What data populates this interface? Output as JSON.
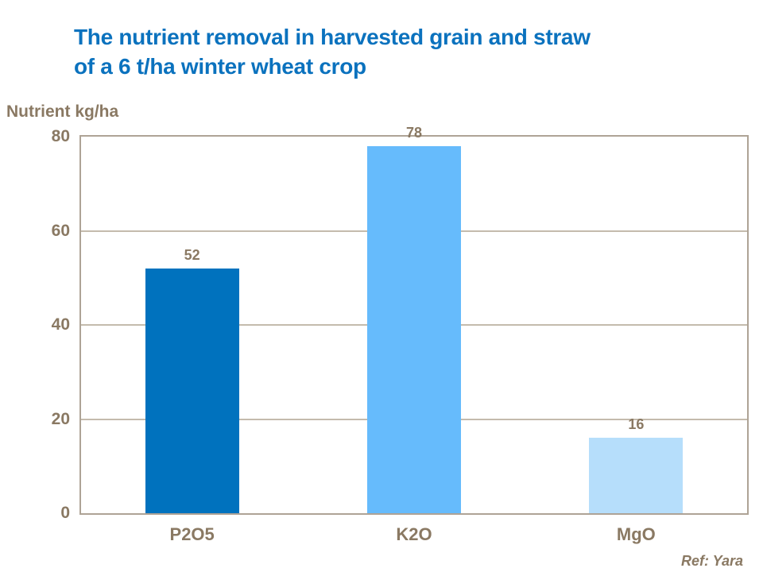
{
  "title": {
    "line1": "The nutrient removal in harvested grain and straw",
    "line2": "of a 6 t/ha winter wheat crop"
  },
  "axis_unit_label": "Nutrient kg/ha",
  "ref_text": "Ref: Yara",
  "colors": {
    "title_text": "#0B72BE",
    "chart_text": "#8A7963",
    "plot_border": "#AEA396",
    "gridline": "#C4BBAD",
    "background": "#FFFFFF"
  },
  "chart_data": {
    "type": "bar",
    "categories": [
      "P2O5",
      "K2O",
      "MgO"
    ],
    "values": [
      52,
      78,
      16
    ],
    "bar_colors": [
      "#0072BE",
      "#66BBFC",
      "#B6DEFB"
    ],
    "data_labels": [
      "52",
      "78",
      "16"
    ],
    "title": "The nutrient removal in harvested grain and straw of a 6 t/ha winter wheat crop",
    "xlabel": "",
    "ylabel": "Nutrient kg/ha",
    "ylim": [
      0,
      80
    ],
    "yticks": [
      0,
      20,
      40,
      60,
      80
    ],
    "grid": true,
    "legend": false,
    "annotations": [
      "Ref: Yara"
    ]
  }
}
